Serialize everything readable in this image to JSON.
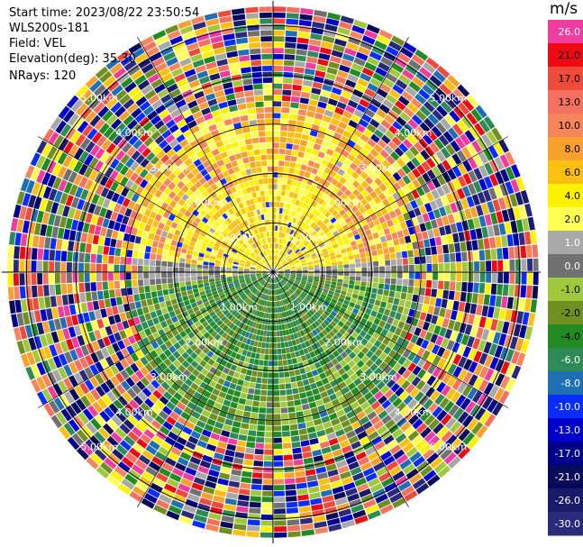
{
  "header": {
    "start_time": "Start time: 2023/08/22 23:50:54",
    "instrument": "WLS200s-181",
    "field": "Field: VEL",
    "elevation": "Elevation(deg): 35.30",
    "nrays": "NRays: 120"
  },
  "colorbar": {
    "unit": "m/s",
    "levels": [
      {
        "label": "26.0",
        "color": "#f03c9e"
      },
      {
        "label": "21.0",
        "color": "#ee0a12"
      },
      {
        "label": "17.0",
        "color": "#f04a3c"
      },
      {
        "label": "13.0",
        "color": "#f47060"
      },
      {
        "label": "10.0",
        "color": "#f7855c"
      },
      {
        "label": "8.0",
        "color": "#f7a030"
      },
      {
        "label": "6.0",
        "color": "#fbbf12"
      },
      {
        "label": "4.0",
        "color": "#fff200"
      },
      {
        "label": "2.0",
        "color": "#ffff55"
      },
      {
        "label": "1.0",
        "color": "#a8a8a8"
      },
      {
        "label": "0.0",
        "color": "#707070"
      },
      {
        "label": "-1.0",
        "color": "#a0c83c"
      },
      {
        "label": "-2.0",
        "color": "#6f8f22"
      },
      {
        "label": "-4.0",
        "color": "#228b22"
      },
      {
        "label": "-6.0",
        "color": "#2e8b57"
      },
      {
        "label": "-8.0",
        "color": "#1e6fb4"
      },
      {
        "label": "-10.0",
        "color": "#0a2dff"
      },
      {
        "label": "-13.0",
        "color": "#0000cd"
      },
      {
        "label": "-17.0",
        "color": "#00008b"
      },
      {
        "label": "-21.0",
        "color": "#0a0a5a"
      },
      {
        "label": "-26.0",
        "color": "#1a1a6a"
      },
      {
        "label": "-30.0",
        "color": "#2a2a7a"
      }
    ]
  },
  "chart_data": {
    "type": "heatmap",
    "projection": "polar-ppi",
    "field": "VEL",
    "units": "m/s",
    "elevation_deg": 35.3,
    "n_rays": 120,
    "range_rings_km": [
      1.0,
      2.0,
      3.0,
      4.0,
      5.0
    ],
    "range_ring_labels": [
      "1.00km",
      "2.00km",
      "3.00km",
      "4.00km",
      "5.00km"
    ],
    "max_range_km": 5.5,
    "valid_data_range_km": 3.0,
    "spoke_step_deg": 30,
    "pattern": {
      "north_half_near": "positive 2-8 m/s (yellow/orange)",
      "south_half_near": "negative 1-8 m/s (green)",
      "east_west_band": "near 0 m/s (gray)",
      "outer_ranges": "noise across full colour range"
    }
  }
}
